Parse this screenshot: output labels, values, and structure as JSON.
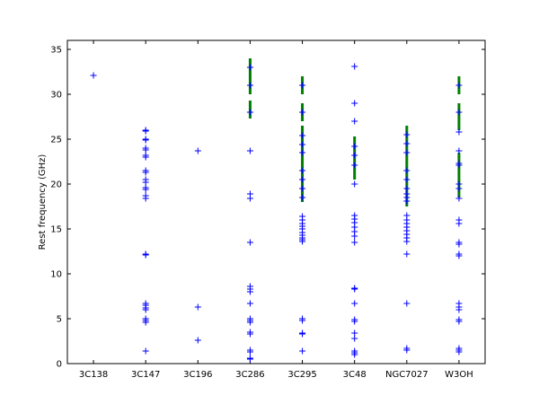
{
  "chart_data": {
    "type": "strip",
    "ylabel": "Rest frequency (GHz)",
    "categories": [
      "3C138",
      "3C147",
      "3C196",
      "3C286",
      "3C295",
      "3C48",
      "NGC7027",
      "W3OH"
    ],
    "ylim": [
      0,
      36
    ],
    "yticks": [
      0,
      5,
      10,
      15,
      20,
      25,
      30,
      35
    ],
    "points": {
      "color": "#0000ff",
      "values": [
        [
          32.1
        ],
        [
          26,
          25.9,
          25,
          24.9,
          24,
          23.8,
          23.2,
          23,
          21.5,
          21.3,
          20.5,
          20.2,
          19.6,
          19.4,
          18.7,
          18.4,
          12.2,
          12.1,
          6.7,
          6.5,
          6.2,
          6.0,
          5.0,
          4.8,
          4.6,
          1.4
        ],
        [
          23.7,
          6.3,
          2.6
        ],
        [
          33,
          31,
          28,
          23.7,
          18.9,
          18.4,
          13.5,
          8.6,
          8.3,
          8.0,
          6.7,
          5.0,
          4.8,
          4.6,
          3.5,
          3.3,
          1.5,
          1.3,
          0.6,
          0.5
        ],
        [
          31,
          28,
          25.4,
          24.4,
          23.5,
          21.5,
          20.5,
          19.5,
          18.5,
          16.4,
          16,
          15.6,
          15.3,
          15,
          14.6,
          14.3,
          14,
          13.8,
          13.6,
          5.0,
          4.8,
          3.4,
          3.3,
          1.4
        ],
        [
          33.1,
          29,
          27,
          24.2,
          23.2,
          22.1,
          20,
          16.5,
          16.1,
          15.7,
          15.2,
          14.7,
          14.2,
          13.5,
          8.4,
          8.3,
          6.7,
          4.9,
          4.7,
          3.4,
          2.8,
          1.4,
          1.2,
          1.0
        ],
        [
          25.5,
          24.5,
          23.5,
          21.5,
          20.5,
          19.5,
          18.9,
          18.5,
          18.1,
          16.5,
          16,
          15.6,
          15.2,
          14.8,
          14.4,
          14,
          13.6,
          12.2,
          6.7,
          1.7,
          1.5
        ],
        [
          31,
          28,
          25.8,
          23.7,
          22.3,
          22.1,
          20,
          19.5,
          18.4,
          16,
          15.6,
          13.5,
          13.3,
          12.2,
          12.0,
          6.7,
          6.3,
          6.0,
          4.9,
          4.7,
          1.7,
          1.5,
          1.3
        ]
      ]
    },
    "bands": {
      "color": "#008000",
      "values": [
        [],
        [],
        [],
        [
          [
            30,
            34
          ],
          [
            27.3,
            29.3
          ]
        ],
        [
          [
            30,
            32
          ],
          [
            27,
            29
          ],
          [
            18,
            26.5
          ]
        ],
        [
          [
            20.5,
            25.3
          ]
        ],
        [
          [
            17.5,
            26.5
          ]
        ],
        [
          [
            30,
            32
          ],
          [
            26,
            29
          ],
          [
            18.5,
            23.5
          ]
        ]
      ]
    }
  }
}
